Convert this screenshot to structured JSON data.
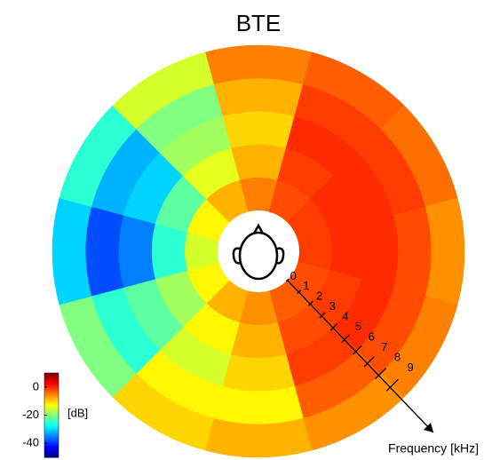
{
  "chart_data": {
    "type": "polar_heatmap",
    "title": "BTE",
    "colormap": "jet",
    "angles": [
      0,
      30,
      60,
      90,
      120,
      150,
      180,
      210,
      240,
      270,
      300,
      330
    ],
    "frequency_bins": [
      0,
      2,
      4,
      6,
      8,
      10
    ],
    "values": [
      [
        -5,
        -8,
        -10,
        -8,
        -5
      ],
      [
        -2,
        -1,
        0,
        -1,
        -3
      ],
      [
        -1,
        0,
        0,
        -1,
        -4
      ],
      [
        -1,
        0,
        0,
        -2,
        -6
      ],
      [
        -2,
        -1,
        0,
        -2,
        -5
      ],
      [
        -3,
        -2,
        -1,
        -3,
        -6
      ],
      [
        -6,
        -8,
        -10,
        -12,
        -8
      ],
      [
        -8,
        -12,
        -15,
        -12,
        -10
      ],
      [
        -12,
        -18,
        -22,
        -25,
        -20
      ],
      [
        -15,
        -25,
        -35,
        -38,
        -30
      ],
      [
        -12,
        -22,
        -30,
        -32,
        -25
      ],
      [
        -8,
        -14,
        -18,
        -20,
        -15
      ]
    ],
    "clim": [
      -50,
      10
    ],
    "cticks": [
      0,
      -20,
      -40
    ],
    "clabel": "[dB]",
    "rlabel": "Frequency [kHz]",
    "rlim": [
      0,
      10
    ],
    "rticks": [
      0,
      1,
      2,
      3,
      4,
      5,
      6,
      7,
      8,
      9
    ]
  }
}
